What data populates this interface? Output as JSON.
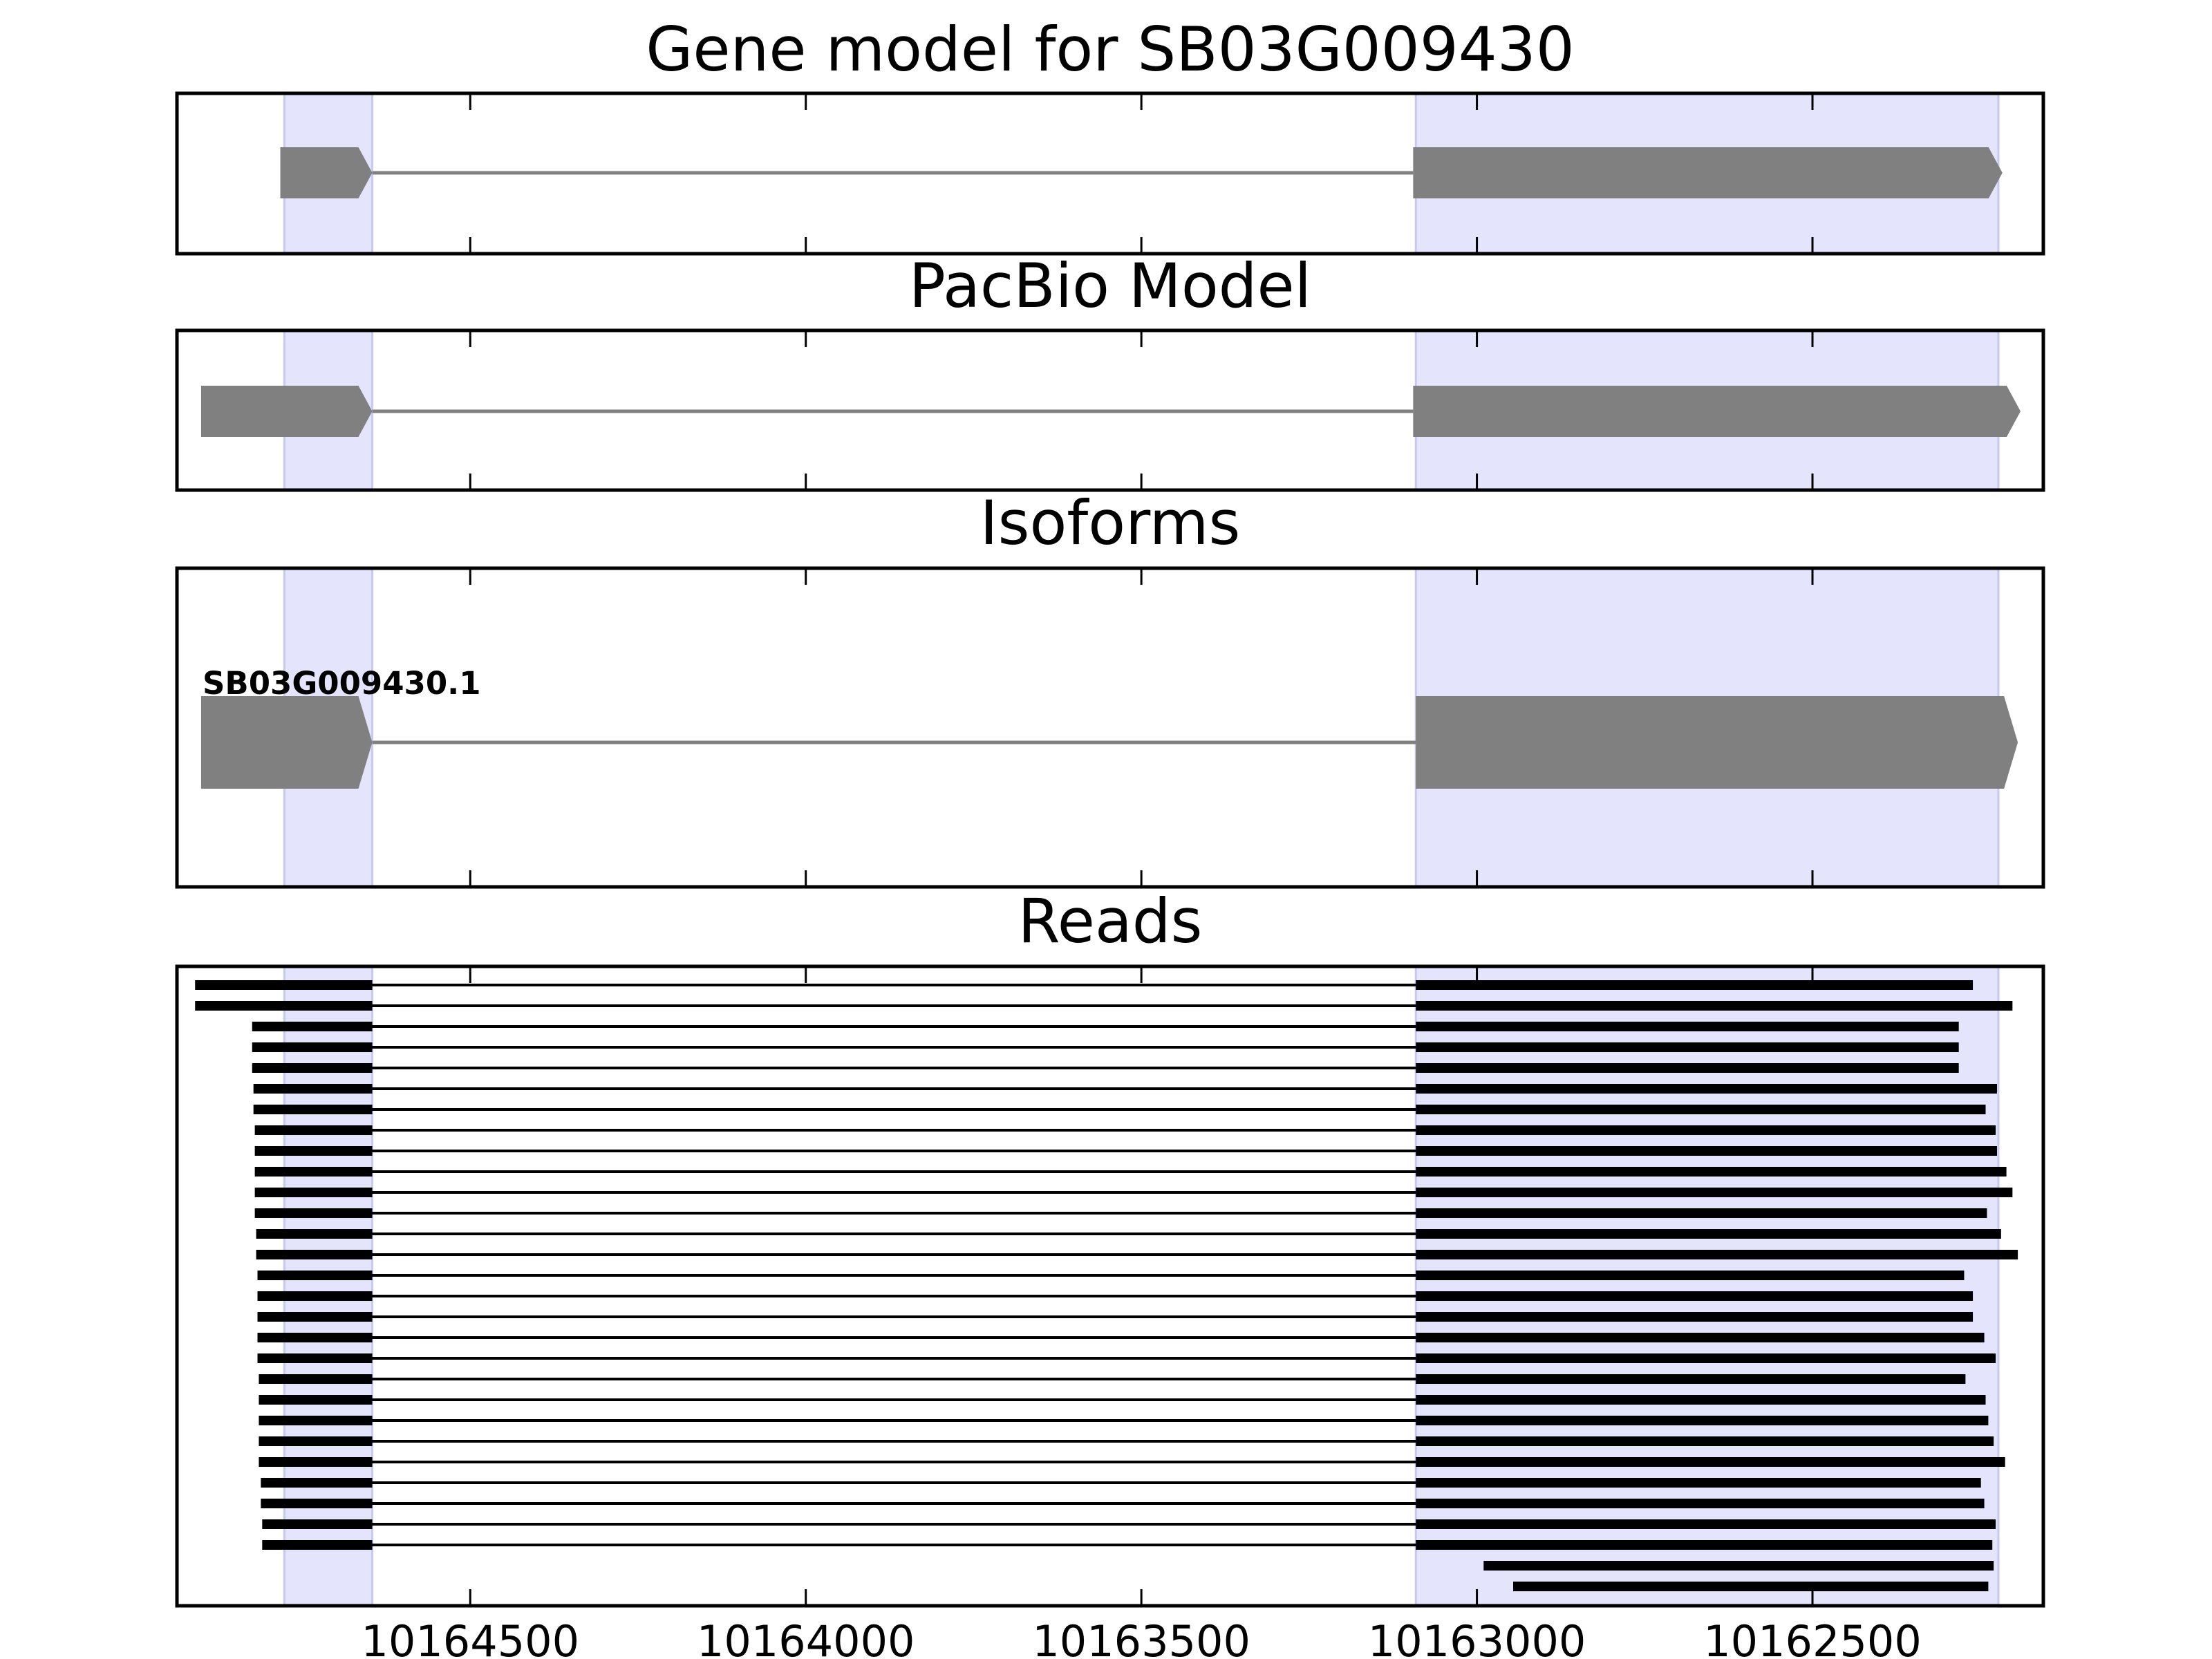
{
  "chart_data": {
    "type": "gene-tracks",
    "xlim": [
      10164937,
      10162156
    ],
    "xticks": [
      10164500,
      10164000,
      10163500,
      10163000,
      10162500
    ],
    "highlight_regions": [
      [
        10164777,
        10164646
      ],
      [
        10163091,
        10162223
      ]
    ],
    "panels": [
      {
        "type": "gene",
        "title": "Gene model for SB03G009430",
        "exons": [
          [
            10164783,
            10164646
          ],
          [
            10163095,
            10162217
          ]
        ]
      },
      {
        "type": "gene",
        "title": "PacBio Model",
        "exons": [
          [
            10164901,
            10164646
          ],
          [
            10163095,
            10162190
          ]
        ]
      },
      {
        "type": "gene",
        "title": "Isoforms",
        "label": "SB03G009430.1",
        "exons": [
          [
            10164901,
            10164646
          ],
          [
            10163091,
            10162194
          ]
        ]
      },
      {
        "type": "reads",
        "title": "Reads",
        "reads": [
          [
            [
              10164910,
              10164646
            ],
            [
              10163091,
              10162261
            ]
          ],
          [
            [
              10164910,
              10164646
            ],
            [
              10163091,
              10162202
            ]
          ],
          [
            [
              10164825,
              10164646
            ],
            [
              10163091,
              10162282
            ]
          ],
          [
            [
              10164825,
              10164646
            ],
            [
              10163091,
              10162282
            ]
          ],
          [
            [
              10164825,
              10164646
            ],
            [
              10163091,
              10162282
            ]
          ],
          [
            [
              10164823,
              10164646
            ],
            [
              10163091,
              10162225
            ]
          ],
          [
            [
              10164823,
              10164646
            ],
            [
              10163091,
              10162242
            ]
          ],
          [
            [
              10164821,
              10164646
            ],
            [
              10163091,
              10162227
            ]
          ],
          [
            [
              10164821,
              10164646
            ],
            [
              10163091,
              10162225
            ]
          ],
          [
            [
              10164821,
              10164646
            ],
            [
              10163091,
              10162211
            ]
          ],
          [
            [
              10164821,
              10164646
            ],
            [
              10163091,
              10162202
            ]
          ],
          [
            [
              10164821,
              10164646
            ],
            [
              10163091,
              10162240
            ]
          ],
          [
            [
              10164819,
              10164646
            ],
            [
              10163091,
              10162219
            ]
          ],
          [
            [
              10164819,
              10164646
            ],
            [
              10163091,
              10162194
            ]
          ],
          [
            [
              10164817,
              10164646
            ],
            [
              10163091,
              10162274
            ]
          ],
          [
            [
              10164817,
              10164646
            ],
            [
              10163091,
              10162261
            ]
          ],
          [
            [
              10164817,
              10164646
            ],
            [
              10163091,
              10162261
            ]
          ],
          [
            [
              10164817,
              10164646
            ],
            [
              10163091,
              10162244
            ]
          ],
          [
            [
              10164817,
              10164646
            ],
            [
              10163091,
              10162227
            ]
          ],
          [
            [
              10164815,
              10164646
            ],
            [
              10163091,
              10162272
            ]
          ],
          [
            [
              10164815,
              10164646
            ],
            [
              10163091,
              10162242
            ]
          ],
          [
            [
              10164815,
              10164646
            ],
            [
              10163091,
              10162238
            ]
          ],
          [
            [
              10164815,
              10164646
            ],
            [
              10163091,
              10162230
            ]
          ],
          [
            [
              10164815,
              10164646
            ],
            [
              10163091,
              10162213
            ]
          ],
          [
            [
              10164812,
              10164646
            ],
            [
              10163091,
              10162249
            ]
          ],
          [
            [
              10164812,
              10164646
            ],
            [
              10163091,
              10162244
            ]
          ],
          [
            [
              10164810,
              10164646
            ],
            [
              10163091,
              10162227
            ]
          ],
          [
            [
              10164810,
              10164646
            ],
            [
              10163091,
              10162232
            ]
          ],
          [
            [
              10162990,
              10162230
            ]
          ],
          [
            [
              10162946,
              10162238
            ]
          ]
        ]
      }
    ]
  }
}
